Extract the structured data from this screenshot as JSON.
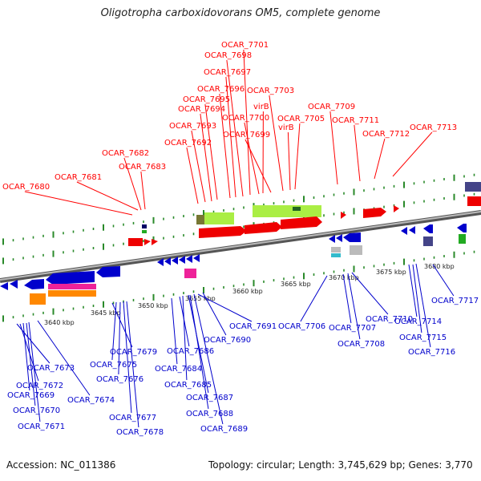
{
  "title": "Oligotropha carboxidovorans OM5, complete genome",
  "footer": {
    "accession": "Accession: NC_011386",
    "summary": "Topology: circular; Length: 3,745,629 bp; Genes: 3,770"
  },
  "colors": {
    "top_label": "#ff0000",
    "bottom_label": "#0000cc",
    "backbone": "#808080",
    "tick": "#2a8a2a",
    "kbp_text": "#222222"
  },
  "kbp_labels": [
    "3640 kbp",
    "3645 kbp",
    "3650 kbp",
    "3655 kbp",
    "3660 kbp",
    "3665 kbp",
    "3670 kbp",
    "3675 kbp",
    "3680 kbp"
  ],
  "top_genes": [
    "OCAR_7680",
    "OCAR_7681",
    "OCAR_7682",
    "OCAR_7683",
    "OCAR_7692",
    "OCAR_7693",
    "OCAR_7694",
    "OCAR_7695",
    "OCAR_7696",
    "OCAR_7697",
    "OCAR_7698",
    "OCAR_7701",
    "OCAR_7700",
    "OCAR_7699",
    "virB",
    "OCAR_7703",
    "OCAR_7705",
    "virB",
    "OCAR_7709",
    "OCAR_7711",
    "OCAR_7712",
    "OCAR_7713"
  ],
  "bottom_genes": [
    "OCAR_7673",
    "OCAR_7672",
    "OCAR_7669",
    "OCAR_7670",
    "OCAR_7671",
    "OCAR_7674",
    "OCAR_7679",
    "OCAR_7675",
    "OCAR_7676",
    "OCAR_7677",
    "OCAR_7678",
    "OCAR_7690",
    "OCAR_7686",
    "OCAR_7684",
    "OCAR_7685",
    "OCAR_7687",
    "OCAR_7688",
    "OCAR_7689",
    "OCAR_7691",
    "OCAR_7706",
    "OCAR_7707",
    "OCAR_7708",
    "OCAR_7710",
    "OCAR_7714",
    "OCAR_7715",
    "OCAR_7716",
    "OCAR_7717"
  ]
}
